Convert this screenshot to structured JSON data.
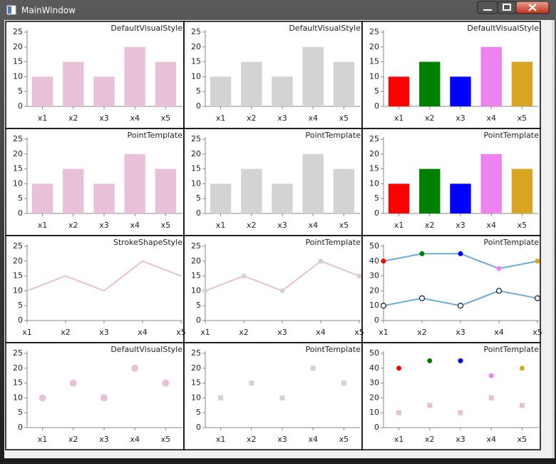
{
  "window": {
    "title": "MainWindow"
  },
  "chart_data": [
    {
      "type": "bar",
      "title": "DefaultVisualStyle",
      "categories": [
        "x1",
        "x2",
        "x3",
        "x4",
        "x5"
      ],
      "ylim": [
        0,
        25
      ],
      "yticks": [
        0,
        5,
        10,
        15,
        20,
        25
      ],
      "series": [
        {
          "values": [
            10,
            15,
            10,
            20,
            15
          ],
          "color": "#e8c1d9"
        }
      ]
    },
    {
      "type": "bar",
      "title": "DefaultVisualStyle",
      "categories": [
        "x1",
        "x2",
        "x3",
        "x4",
        "x5"
      ],
      "ylim": [
        0,
        25
      ],
      "yticks": [
        0,
        5,
        10,
        15,
        20,
        25
      ],
      "series": [
        {
          "values": [
            10,
            15,
            10,
            20,
            15
          ],
          "color": "#d3d3d3"
        }
      ]
    },
    {
      "type": "bar",
      "title": "DefaultVisualStyle",
      "categories": [
        "x1",
        "x2",
        "x3",
        "x4",
        "x5"
      ],
      "ylim": [
        0,
        25
      ],
      "yticks": [
        0,
        5,
        10,
        15,
        20,
        25
      ],
      "series": [
        {
          "values": [
            10,
            15,
            10,
            20,
            15
          ],
          "colors": [
            "#ff0000",
            "#008000",
            "#0000ff",
            "#ee82ee",
            "#daa520"
          ]
        }
      ]
    },
    {
      "type": "bar",
      "title": "PointTemplate",
      "categories": [
        "x1",
        "x2",
        "x3",
        "x4",
        "x5"
      ],
      "ylim": [
        0,
        25
      ],
      "yticks": [
        0,
        5,
        10,
        15,
        20,
        25
      ],
      "series": [
        {
          "values": [
            10,
            15,
            10,
            20,
            15
          ],
          "color": "#e8c1d9"
        }
      ]
    },
    {
      "type": "bar",
      "title": "PointTemplate",
      "categories": [
        "x1",
        "x2",
        "x3",
        "x4",
        "x5"
      ],
      "ylim": [
        0,
        25
      ],
      "yticks": [
        0,
        5,
        10,
        15,
        20,
        25
      ],
      "series": [
        {
          "values": [
            10,
            15,
            10,
            20,
            15
          ],
          "color": "#d3d3d3"
        }
      ]
    },
    {
      "type": "bar",
      "title": "PointTemplate",
      "categories": [
        "x1",
        "x2",
        "x3",
        "x4",
        "x5"
      ],
      "ylim": [
        0,
        25
      ],
      "yticks": [
        0,
        5,
        10,
        15,
        20,
        25
      ],
      "series": [
        {
          "values": [
            10,
            15,
            10,
            20,
            15
          ],
          "colors": [
            "#ff0000",
            "#008000",
            "#0000ff",
            "#ee82ee",
            "#daa520"
          ]
        }
      ]
    },
    {
      "type": "line",
      "title": "StrokeShapeStyle",
      "categories": [
        "x1",
        "x2",
        "x3",
        "x4",
        "x5"
      ],
      "ylim": [
        0,
        25
      ],
      "yticks": [
        0,
        5,
        10,
        15,
        20,
        25
      ],
      "series": [
        {
          "values": [
            10,
            15,
            10,
            20,
            15
          ],
          "line_color": "#e8c1d9"
        }
      ]
    },
    {
      "type": "line",
      "title": "PointTemplate",
      "categories": [
        "x1",
        "x2",
        "x3",
        "x4",
        "x5"
      ],
      "ylim": [
        0,
        25
      ],
      "yticks": [
        0,
        5,
        10,
        15,
        20,
        25
      ],
      "series": [
        {
          "values": [
            10,
            15,
            10,
            20,
            15
          ],
          "line_color": "#e8c1d9",
          "marker": "circle",
          "color": "#d3d3d3"
        }
      ]
    },
    {
      "type": "line",
      "title": "PointTemplate",
      "categories": [
        "x1",
        "x2",
        "x3",
        "x4",
        "x5"
      ],
      "ylim": [
        0,
        50
      ],
      "yticks": [
        0,
        10,
        20,
        30,
        40,
        50
      ],
      "series": [
        {
          "values": [
            40,
            45,
            45,
            35,
            40
          ],
          "line_color": "#6aaad4",
          "marker": "circle",
          "colors": [
            "#ff0000",
            "#008000",
            "#0000ff",
            "#ee82ee",
            "#daa520"
          ]
        },
        {
          "values": [
            10,
            15,
            10,
            20,
            15
          ],
          "line_color": "#6aaad4",
          "marker": "circle",
          "color": "#ffffff",
          "marker_stroke": "#1a2550"
        }
      ]
    },
    {
      "type": "scatter",
      "title": "DefaultVisualStyle",
      "categories": [
        "x1",
        "x2",
        "x3",
        "x4",
        "x5"
      ],
      "ylim": [
        0,
        25
      ],
      "yticks": [
        0,
        5,
        10,
        15,
        20,
        25
      ],
      "series": [
        {
          "values": [
            10,
            15,
            10,
            20,
            15
          ],
          "color": "#e8c1d9",
          "marker": "circle",
          "size": 5
        }
      ]
    },
    {
      "type": "scatter",
      "title": "PointTemplate",
      "categories": [
        "x1",
        "x2",
        "x3",
        "x4",
        "x5"
      ],
      "ylim": [
        0,
        25
      ],
      "yticks": [
        0,
        5,
        10,
        15,
        20,
        25
      ],
      "series": [
        {
          "values": [
            10,
            15,
            10,
            20,
            15
          ],
          "color": "#d3d3d3",
          "marker": "square",
          "size": 3.5
        }
      ]
    },
    {
      "type": "scatter",
      "title": "PointTemplate",
      "categories": [
        "x1",
        "x2",
        "x3",
        "x4",
        "x5"
      ],
      "ylim": [
        0,
        50
      ],
      "yticks": [
        0,
        10,
        20,
        30,
        40,
        50
      ],
      "series": [
        {
          "values": [
            40,
            45,
            45,
            35,
            40
          ],
          "colors": [
            "#ff0000",
            "#008000",
            "#0000ff",
            "#ee82ee",
            "#daa520"
          ],
          "marker": "circle",
          "size": 3.5
        },
        {
          "values": [
            10,
            15,
            10,
            20,
            15
          ],
          "color": "#e8c1d9",
          "marker": "square",
          "size": 3.5
        }
      ]
    }
  ]
}
